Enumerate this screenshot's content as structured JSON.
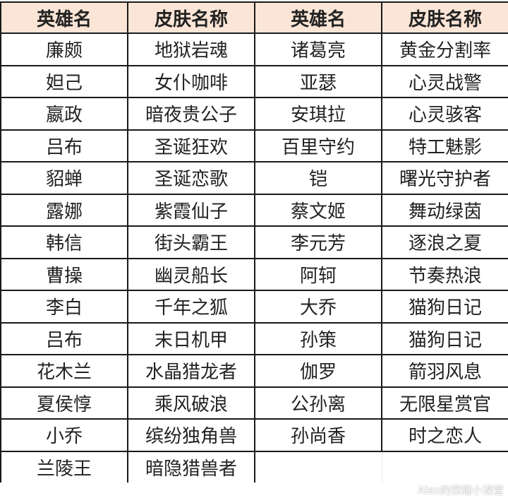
{
  "headers": [
    "英雄名",
    "皮肤名称",
    "英雄名",
    "皮肤名称"
  ],
  "header_bg": "#fbe5d6",
  "rows": [
    [
      "廉颇",
      "地狱岩魂",
      "诸葛亮",
      "黄金分割率"
    ],
    [
      "妲己",
      "女仆咖啡",
      "亚瑟",
      "心灵战警"
    ],
    [
      "嬴政",
      "暗夜贵公子",
      "安琪拉",
      "心灵骇客"
    ],
    [
      "吕布",
      "圣诞狂欢",
      "百里守约",
      "特工魅影"
    ],
    [
      "貂蝉",
      "圣诞恋歌",
      "铠",
      "曙光守护者"
    ],
    [
      "露娜",
      "紫霞仙子",
      "蔡文姬",
      "舞动绿茵"
    ],
    [
      "韩信",
      "街头霸王",
      "李元芳",
      "逐浪之夏"
    ],
    [
      "曹操",
      "幽灵船长",
      "阿轲",
      "节奏热浪"
    ],
    [
      "李白",
      "千年之狐",
      "大乔",
      "猫狗日记"
    ],
    [
      "吕布",
      "末日机甲",
      "孙策",
      "猫狗日记"
    ],
    [
      "花木兰",
      "水晶猎龙者",
      "伽罗",
      "箭羽风息"
    ],
    [
      "夏侯惇",
      "乘风破浪",
      "公孙离",
      "无限星赏官"
    ],
    [
      "小乔",
      "缤纷独角兽",
      "孙尚香",
      "时之恋人"
    ],
    [
      "兰陵王",
      "暗隐猎兽者",
      "",
      ""
    ]
  ],
  "watermark": "Alex的荣耀小课堂"
}
